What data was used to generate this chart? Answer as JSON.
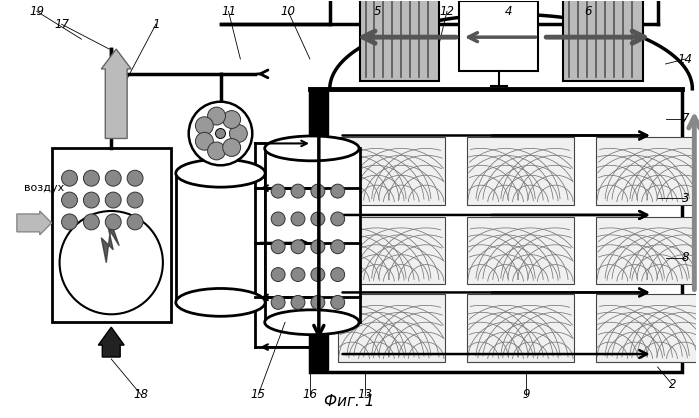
{
  "title": "Фиг. 1",
  "bg": "#ffffff",
  "lc": "#000000",
  "gc": "#888888",
  "lgc": "#bbbbbb",
  "dgc": "#555555",
  "figsize": [
    6.99,
    4.18
  ],
  "dpi": 100
}
